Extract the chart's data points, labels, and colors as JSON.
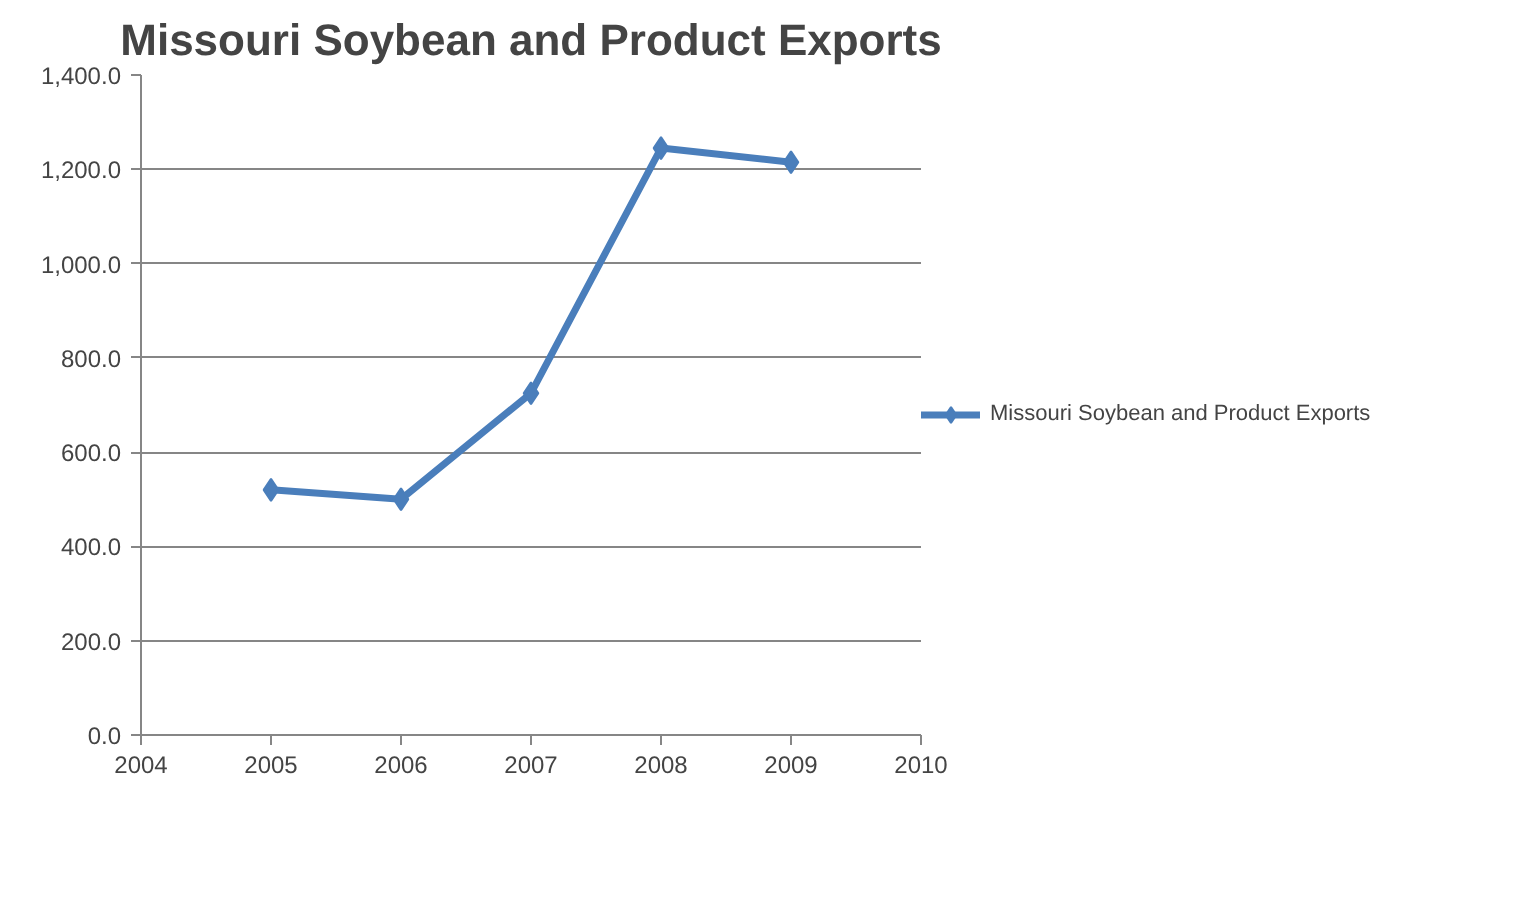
{
  "chart_data": {
    "type": "line",
    "title": "Missouri Soybean and Product Exports",
    "x": [
      2005,
      2006,
      2007,
      2008,
      2009
    ],
    "series": [
      {
        "name": "Missouri Soybean and Product Exports",
        "color": "#4a7ebb",
        "values": [
          520,
          500,
          725,
          1245,
          1215
        ]
      }
    ],
    "xlim": [
      2004,
      2010
    ],
    "xticks": [
      2004,
      2005,
      2006,
      2007,
      2008,
      2009,
      2010
    ],
    "ylim": [
      0,
      1400
    ],
    "yticks": [
      {
        "value": 0,
        "label": "0.0"
      },
      {
        "value": 200,
        "label": "200.0"
      },
      {
        "value": 400,
        "label": "400.0"
      },
      {
        "value": 600,
        "label": "600.0"
      },
      {
        "value": 800,
        "label": "800.0"
      },
      {
        "value": 1000,
        "label": "1,000.0"
      },
      {
        "value": 1200,
        "label": "1,200.0"
      },
      {
        "value": 1400,
        "label": "1,400.0"
      }
    ],
    "grid": "y",
    "legend": "right",
    "marker": "diamond",
    "line_style": "solid"
  }
}
